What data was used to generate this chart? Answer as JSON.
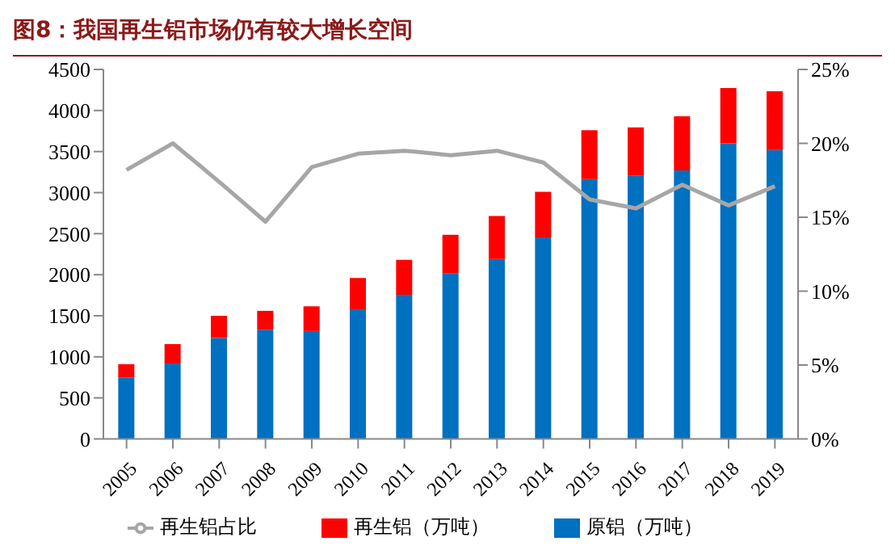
{
  "chart_data": {
    "type": "bar",
    "title": "图8：我国再生铝市场仍有较大增长空间",
    "stacked": true,
    "categories": [
      "2005",
      "2006",
      "2007",
      "2008",
      "2009",
      "2010",
      "2011",
      "2012",
      "2013",
      "2014",
      "2015",
      "2016",
      "2017",
      "2018",
      "2019"
    ],
    "series": [
      {
        "name": "原铝（万吨）",
        "color": "#0070c0",
        "values": [
          750,
          920,
          1230,
          1330,
          1315,
          1580,
          1755,
          2015,
          2190,
          2455,
          3165,
          3205,
          3270,
          3600,
          3520
        ]
      },
      {
        "name": "再生铝（万吨）",
        "color": "#ff0000",
        "values": [
          160,
          235,
          270,
          230,
          300,
          380,
          425,
          470,
          525,
          555,
          595,
          590,
          660,
          675,
          715
        ]
      },
      {
        "name": "再生铝占比",
        "type": "line",
        "axis": "y2",
        "color": "#a6a6a6",
        "values": [
          18.2,
          20.0,
          17.4,
          14.7,
          18.4,
          19.3,
          19.5,
          19.2,
          19.5,
          18.7,
          16.2,
          15.6,
          17.2,
          15.8,
          17.1
        ]
      }
    ],
    "ylim": [
      0,
      4500
    ],
    "yticks": [
      0,
      500,
      1000,
      1500,
      2000,
      2500,
      3000,
      3500,
      4000,
      4500
    ],
    "y2lim": [
      0,
      25
    ],
    "y2ticks": [
      {
        "value": 0,
        "label": "0%"
      },
      {
        "value": 5,
        "label": "5%"
      },
      {
        "value": 10,
        "label": "10%"
      },
      {
        "value": 15,
        "label": "15%"
      },
      {
        "value": 20,
        "label": "20%"
      },
      {
        "value": 25,
        "label": "25%"
      }
    ],
    "grid": false,
    "legend": "bottom",
    "marker": "none",
    "line_style": "solid"
  }
}
